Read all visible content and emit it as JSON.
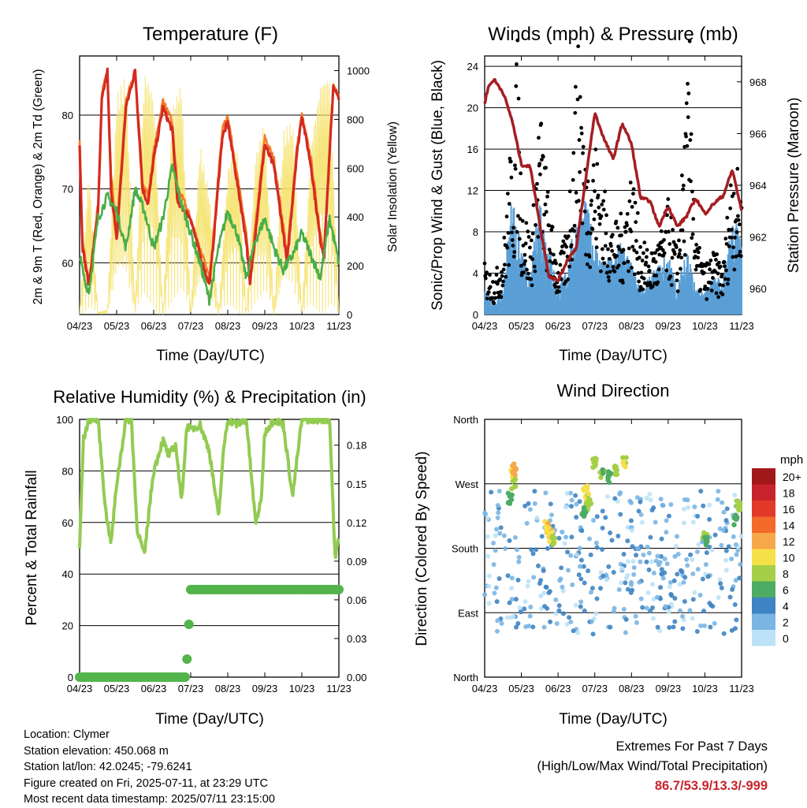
{
  "colors": {
    "red": "#d42a20",
    "orange": "#f37b2a",
    "green": "#4aae48",
    "yellow": "#f5e26b",
    "blue": "#5a9fd6",
    "black": "#000000",
    "maroon": "#a51e22",
    "rh": "#92cb52",
    "precip": "#52b44a"
  },
  "time_ticks": [
    "04/23",
    "05/23",
    "06/23",
    "07/23",
    "08/23",
    "09/23",
    "10/23",
    "11/23"
  ],
  "xlabel": "Time (Day/UTC)",
  "chart_data": [
    {
      "id": "temperature",
      "type": "line",
      "title": "Temperature (F)",
      "ylabel": "2m & 9m T (Red, Orange) & 2m Td (Green)",
      "y2label": "Solar Insolation (Yellow)",
      "ylim": [
        53,
        88
      ],
      "y_ticks": [
        60,
        70,
        80
      ],
      "y2lim": [
        0,
        1060
      ],
      "y2_ticks": [
        0,
        200,
        400,
        600,
        800,
        1000
      ],
      "grid": true,
      "series": [
        {
          "color_key": "yellow",
          "axis": "right",
          "x": [
            0,
            0.25,
            0.5,
            0.75,
            1,
            1.25,
            1.5,
            1.75,
            2,
            2.25,
            2.5,
            2.75,
            3,
            3.25,
            3.5,
            3.75,
            4,
            4.25,
            4.5,
            4.75,
            5,
            5.25,
            5.5,
            5.75,
            6,
            6.25,
            6.5,
            6.75,
            7
          ],
          "y": [
            5,
            600,
            10,
            20,
            900,
            980,
            30,
            1000,
            900,
            5,
            850,
            950,
            10,
            700,
            500,
            0,
            600,
            700,
            10,
            650,
            800,
            10,
            750,
            800,
            10,
            700,
            950,
            980,
            10
          ]
        },
        {
          "color_key": "orange",
          "axis": "left",
          "x": [
            0,
            0.08,
            0.25,
            0.5,
            0.6,
            0.75,
            0.85,
            1,
            1.25,
            1.5,
            1.7,
            1.85,
            2,
            2.25,
            2.5,
            2.65,
            2.85,
            3,
            3.25,
            3.5,
            3.6,
            3.85,
            4,
            4.25,
            4.5,
            4.6,
            4.85,
            5,
            5.25,
            5.5,
            5.6,
            5.85,
            6,
            6.25,
            6.5,
            6.6,
            6.85,
            7
          ],
          "y": [
            77,
            63,
            57,
            68,
            83,
            86,
            72,
            64,
            82,
            86,
            71,
            69,
            75,
            82,
            79,
            70,
            68,
            66,
            62,
            58,
            63,
            78,
            80,
            72,
            64,
            58,
            70,
            77,
            74,
            65,
            61,
            75,
            80,
            74,
            64,
            62,
            84,
            83
          ]
        },
        {
          "color_key": "red",
          "axis": "left",
          "x": [
            0,
            0.08,
            0.25,
            0.5,
            0.6,
            0.75,
            0.85,
            1,
            1.25,
            1.5,
            1.7,
            1.85,
            2,
            2.25,
            2.5,
            2.65,
            2.85,
            3,
            3.25,
            3.5,
            3.6,
            3.85,
            4,
            4.25,
            4.5,
            4.6,
            4.85,
            5,
            5.25,
            5.5,
            5.6,
            5.85,
            6,
            6.25,
            6.5,
            6.6,
            6.85,
            7
          ],
          "y": [
            76,
            62,
            57,
            67,
            82,
            86,
            70,
            63,
            81,
            86,
            70,
            68,
            74,
            81,
            78,
            68,
            67,
            66,
            61,
            57,
            62,
            77,
            79,
            71,
            63,
            57,
            69,
            76,
            73,
            64,
            60,
            74,
            80,
            73,
            63,
            61,
            84,
            82
          ]
        },
        {
          "color_key": "green",
          "axis": "left",
          "x": [
            0,
            0.12,
            0.25,
            0.5,
            0.75,
            1,
            1.25,
            1.5,
            1.75,
            2,
            2.25,
            2.5,
            2.75,
            3,
            3.25,
            3.5,
            3.75,
            4,
            4.25,
            4.5,
            4.75,
            5,
            5.25,
            5.5,
            5.75,
            6,
            6.25,
            6.5,
            6.75,
            7
          ],
          "y": [
            61,
            58,
            56,
            66,
            69,
            67,
            62,
            70,
            67,
            62,
            66,
            73,
            68,
            64,
            60,
            55,
            62,
            67,
            64,
            58,
            63,
            66,
            62,
            59,
            61,
            64,
            61,
            58,
            66,
            60
          ]
        }
      ]
    },
    {
      "id": "winds",
      "type": "scatter",
      "title": "Winds (mph) & Pressure (mb)",
      "ylabel": "Sonic/Prop Wind & Gust (Blue, Black)",
      "y2label": "Station Pressure (Maroon)",
      "ylim": [
        0,
        25
      ],
      "y_ticks": [
        0,
        4,
        8,
        12,
        16,
        20,
        24
      ],
      "y2lim": [
        959,
        969
      ],
      "y2_ticks": [
        960,
        962,
        964,
        966,
        968
      ],
      "grid": true,
      "series": [
        {
          "color_key": "maroon",
          "kind": "line",
          "axis": "right",
          "x": [
            0,
            0.1,
            0.25,
            0.5,
            0.75,
            1,
            1.25,
            1.5,
            1.75,
            2,
            2.25,
            2.5,
            2.75,
            3,
            3.25,
            3.5,
            3.75,
            4,
            4.25,
            4.5,
            4.75,
            5,
            5.25,
            5.5,
            5.75,
            6,
            6.25,
            6.5,
            6.75,
            7
          ],
          "y": [
            967.2,
            967.8,
            968.1,
            967.6,
            966.5,
            964.8,
            964.7,
            962.5,
            960.5,
            960.3,
            961.1,
            961.6,
            964.2,
            966.8,
            965.8,
            965,
            966.4,
            965.6,
            963.5,
            963.4,
            962.4,
            963.2,
            962.4,
            962.8,
            963.5,
            962.9,
            963.3,
            963.6,
            964.6,
            963
          ]
        },
        {
          "color_key": "black",
          "kind": "points",
          "axis": "left",
          "x": [
            0,
            0.25,
            0.5,
            0.75,
            0.8,
            0.9,
            1,
            1.25,
            1.5,
            1.6,
            1.75,
            2,
            2.25,
            2.5,
            2.6,
            2.75,
            3,
            3.25,
            3.5,
            3.75,
            4,
            4.25,
            4.5,
            4.75,
            5,
            5.25,
            5.5,
            5.6,
            5.75,
            6,
            6.25,
            6.5,
            6.75,
            7
          ],
          "y": [
            4,
            3,
            5,
            15,
            13,
            23,
            10,
            6,
            17,
            14,
            9,
            4,
            7,
            20,
            22,
            12,
            14,
            10,
            7,
            8,
            12,
            6,
            5,
            6,
            9,
            5,
            17,
            22,
            6,
            4,
            5,
            4,
            13,
            10
          ]
        },
        {
          "color_key": "blue",
          "kind": "points",
          "axis": "left",
          "x": [
            0,
            0.25,
            0.5,
            0.75,
            1,
            1.25,
            1.5,
            1.75,
            2,
            2.25,
            2.5,
            2.75,
            3,
            3.25,
            3.5,
            3.75,
            4,
            4.25,
            4.5,
            4.75,
            5,
            5.25,
            5.5,
            5.75,
            6,
            6.25,
            6.5,
            6.75,
            7
          ],
          "y": [
            2,
            1,
            2,
            10,
            5,
            3,
            10,
            6,
            2,
            4,
            8,
            9,
            6,
            4,
            5,
            6,
            4,
            2,
            3,
            4,
            5,
            2,
            6,
            2,
            2,
            3,
            3,
            8,
            6
          ]
        }
      ]
    },
    {
      "id": "humidity",
      "type": "line",
      "title": "Relative Humidity (%) & Precipitation (in)",
      "ylabel": "Percent & Total Rainfall",
      "ylim": [
        0,
        100
      ],
      "y_ticks": [
        0,
        20,
        40,
        60,
        80,
        100
      ],
      "y2lim": [
        0,
        0.2
      ],
      "y2_ticks": [
        "0.00",
        "0.03",
        "0.06",
        "0.09",
        "0.12",
        "0.15",
        "0.18"
      ],
      "grid": true,
      "series": [
        {
          "color_key": "rh",
          "kind": "line",
          "axis": "left",
          "x": [
            0,
            0.1,
            0.25,
            0.5,
            0.7,
            0.85,
            1,
            1.25,
            1.4,
            1.55,
            1.75,
            1.9,
            2,
            2.25,
            2.4,
            2.6,
            2.75,
            2.9,
            3,
            3.25,
            3.5,
            3.75,
            3.9,
            4,
            4.25,
            4.5,
            4.75,
            4.9,
            5,
            5.25,
            5.5,
            5.75,
            6,
            6.25,
            6.5,
            6.75,
            6.9,
            7
          ],
          "y": [
            50,
            92,
            100,
            100,
            65,
            52,
            75,
            100,
            100,
            58,
            47,
            68,
            80,
            92,
            86,
            90,
            68,
            98,
            96,
            98,
            88,
            62,
            90,
            100,
            98,
            100,
            60,
            68,
            95,
            100,
            98,
            70,
            100,
            100,
            100,
            100,
            45,
            55
          ]
        },
        {
          "color_key": "precip",
          "kind": "step",
          "axis": "right",
          "x": [
            0,
            2.9,
            2.92,
            3.0,
            7
          ],
          "y": [
            0,
            0,
            0.014,
            0.068,
            0.068
          ]
        }
      ]
    },
    {
      "id": "direction",
      "type": "scatter",
      "title": "Wind Direction",
      "ylabel": "Direction (Colored By Speed)",
      "y_ticks": [
        "North",
        "East",
        "South",
        "West",
        "North"
      ],
      "ylim": [
        0,
        360
      ],
      "grid": true,
      "legend": {
        "title": "mph",
        "labels": [
          "20+",
          "18",
          "16",
          "14",
          "12",
          "10",
          "8",
          "6",
          "4",
          "2",
          "0"
        ],
        "colors": [
          "#a1181b",
          "#c8232c",
          "#e23a2a",
          "#f36a2b",
          "#f7a849",
          "#f6e04a",
          "#a4cf47",
          "#4dab64",
          "#3f84c2",
          "#7ab5e3",
          "#bde2f7"
        ],
        "placement": "right"
      },
      "points": [
        {
          "x": 0.75,
          "dir": 285,
          "spd": 10
        },
        {
          "x": 0.8,
          "dir": 290,
          "spd": 12
        },
        {
          "x": 0.78,
          "dir": 270,
          "spd": 8
        },
        {
          "x": 0.7,
          "dir": 250,
          "spd": 6
        },
        {
          "x": 1.75,
          "dir": 200,
          "spd": 12
        },
        {
          "x": 1.8,
          "dir": 195,
          "spd": 10
        },
        {
          "x": 1.7,
          "dir": 210,
          "spd": 11
        },
        {
          "x": 1.85,
          "dir": 190,
          "spd": 9
        },
        {
          "x": 2.75,
          "dir": 260,
          "spd": 10
        },
        {
          "x": 2.8,
          "dir": 250,
          "spd": 9
        },
        {
          "x": 2.85,
          "dir": 240,
          "spd": 8
        },
        {
          "x": 2.7,
          "dir": 230,
          "spd": 6
        },
        {
          "x": 3.0,
          "dir": 300,
          "spd": 8
        },
        {
          "x": 3.2,
          "dir": 285,
          "spd": 7
        },
        {
          "x": 3.4,
          "dir": 280,
          "spd": 6
        },
        {
          "x": 3.6,
          "dir": 290,
          "spd": 8
        },
        {
          "x": 3.8,
          "dir": 300,
          "spd": 9
        },
        {
          "x": 6.0,
          "dir": 200,
          "spd": 8
        },
        {
          "x": 6.05,
          "dir": 190,
          "spd": 6
        },
        {
          "x": 6.85,
          "dir": 220,
          "spd": 6
        },
        {
          "x": 6.9,
          "dir": 240,
          "spd": 8
        }
      ]
    }
  ],
  "info": {
    "location": "Location: Clymer",
    "elevation": "Station elevation: 450.068 m",
    "latlon": "Station lat/lon: 42.0245; -79.6241",
    "created": "Figure created on Fri, 2025-07-11, at 23:29 UTC",
    "recent": "Most recent data timestamp: 2025/07/11 23:15:00"
  },
  "extremes": {
    "line1": "Extremes For Past 7 Days",
    "line2": "(High/Low/Max Wind/Total Precipitation)",
    "values": "86.7/53.9/13.3/-999"
  }
}
